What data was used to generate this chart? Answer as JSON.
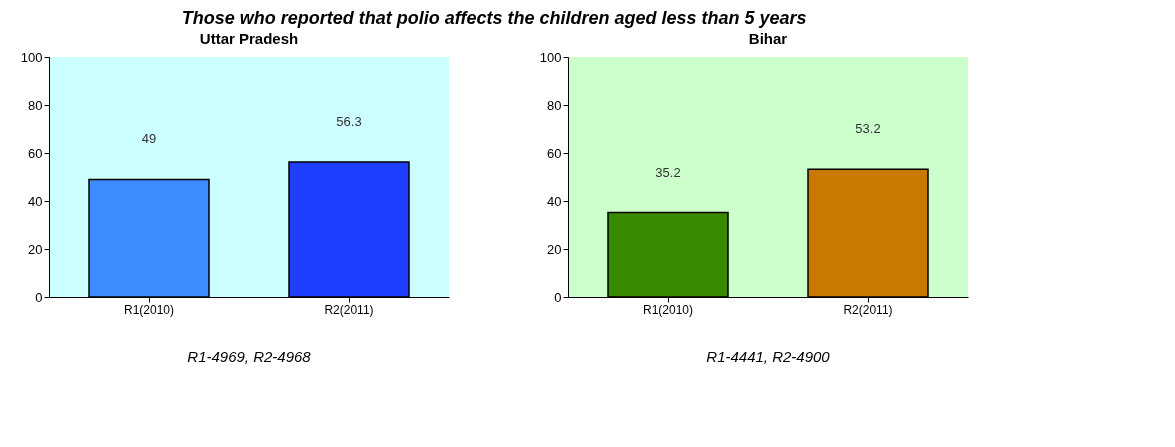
{
  "chart_data": [
    {
      "type": "bar",
      "title": "Uttar Pradesh",
      "categories": [
        "R1(2010)",
        "R2(2011)"
      ],
      "values": [
        49,
        56.3
      ],
      "colors": [
        "#3d8bff",
        "#1f3fff"
      ],
      "ylim": [
        0,
        100
      ],
      "yticks": [
        0,
        20,
        40,
        60,
        80,
        100
      ],
      "grid": false,
      "data_labels": true,
      "annotations": [
        "Those who reported that polio affects the children aged less than 5 years",
        "R1-4969, R2-4968"
      ]
    },
    {
      "type": "bar",
      "title": "Bihar",
      "categories": [
        "R1(2010)",
        "R2(2011)"
      ],
      "values": [
        35.2,
        53.2
      ],
      "colors": [
        "#3a8a00",
        "#c87a00"
      ],
      "ylim": [
        0,
        100
      ],
      "yticks": [
        0,
        20,
        40,
        60,
        80,
        100
      ],
      "grid": false,
      "data_labels": true,
      "annotations": [
        "R1-4441, R2-4900"
      ]
    }
  ]
}
